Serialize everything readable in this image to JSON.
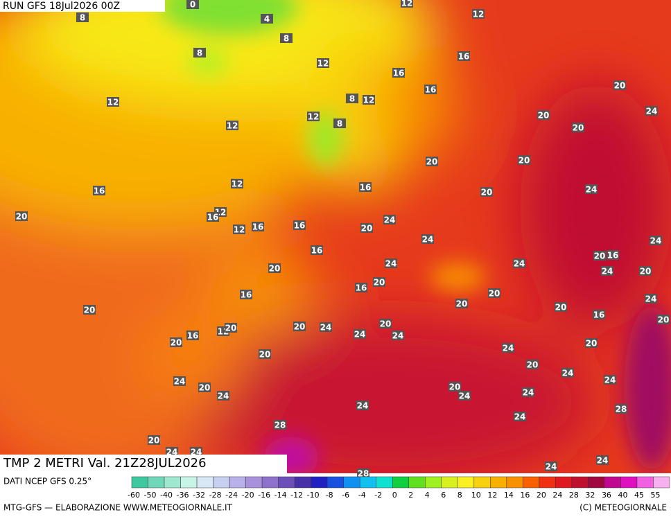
{
  "header": {
    "run": "RUN GFS 18Jul2026 00Z"
  },
  "title": "TMP 2 METRI Val. 21Z28JUL2026",
  "source": "DATI NCEP GFS 0.25°",
  "credit": "MTG-GFS — ELABORAZIONE WWW.METEOGIORNALE.IT",
  "copyright": "(C) METEOGIORNALE",
  "legend": {
    "ticks": [
      -60,
      -50,
      -40,
      -36,
      -32,
      -28,
      -24,
      -20,
      -16,
      -14,
      -12,
      -10,
      -8,
      -6,
      -4,
      -2,
      0,
      2,
      4,
      6,
      8,
      10,
      12,
      14,
      16,
      20,
      24,
      28,
      32,
      36,
      40,
      45,
      55
    ],
    "colors": [
      "#3fc8a0",
      "#6fd8b8",
      "#9ee8d0",
      "#c8f4e8",
      "#d8e8f4",
      "#c8d0f0",
      "#b8b0e8",
      "#a890dc",
      "#8c70cc",
      "#6c50b8",
      "#4830a8",
      "#2020c0",
      "#1850e0",
      "#1090f0",
      "#10c0f0",
      "#10e0d0",
      "#10d040",
      "#60e020",
      "#a0f020",
      "#d8f020",
      "#f8f020",
      "#f8d010",
      "#f8b000",
      "#f89000",
      "#f86000",
      "#f03010",
      "#e01820",
      "#c01030",
      "#a00840",
      "#c00890",
      "#e010c0",
      "#f060e0",
      "#f8b0f0"
    ]
  },
  "map": {
    "labels": [
      0,
      8,
      4,
      8,
      12,
      12,
      8,
      16,
      12,
      16,
      16,
      20,
      12,
      8,
      12,
      24,
      12,
      8,
      20,
      12,
      20,
      20,
      20,
      16,
      12,
      16,
      20,
      24,
      20,
      12,
      16,
      12,
      16,
      16,
      20,
      24,
      24,
      24,
      16,
      20,
      16,
      24,
      24,
      24,
      20,
      20,
      16,
      20,
      20,
      20,
      24,
      16,
      20,
      20,
      16,
      20,
      20,
      24,
      20,
      12,
      20,
      16,
      24,
      24,
      20,
      20,
      20,
      24,
      20,
      24,
      24,
      20,
      24,
      20,
      24,
      24,
      24,
      24,
      28,
      24,
      28,
      20,
      24,
      24,
      24,
      24,
      28
    ]
  }
}
